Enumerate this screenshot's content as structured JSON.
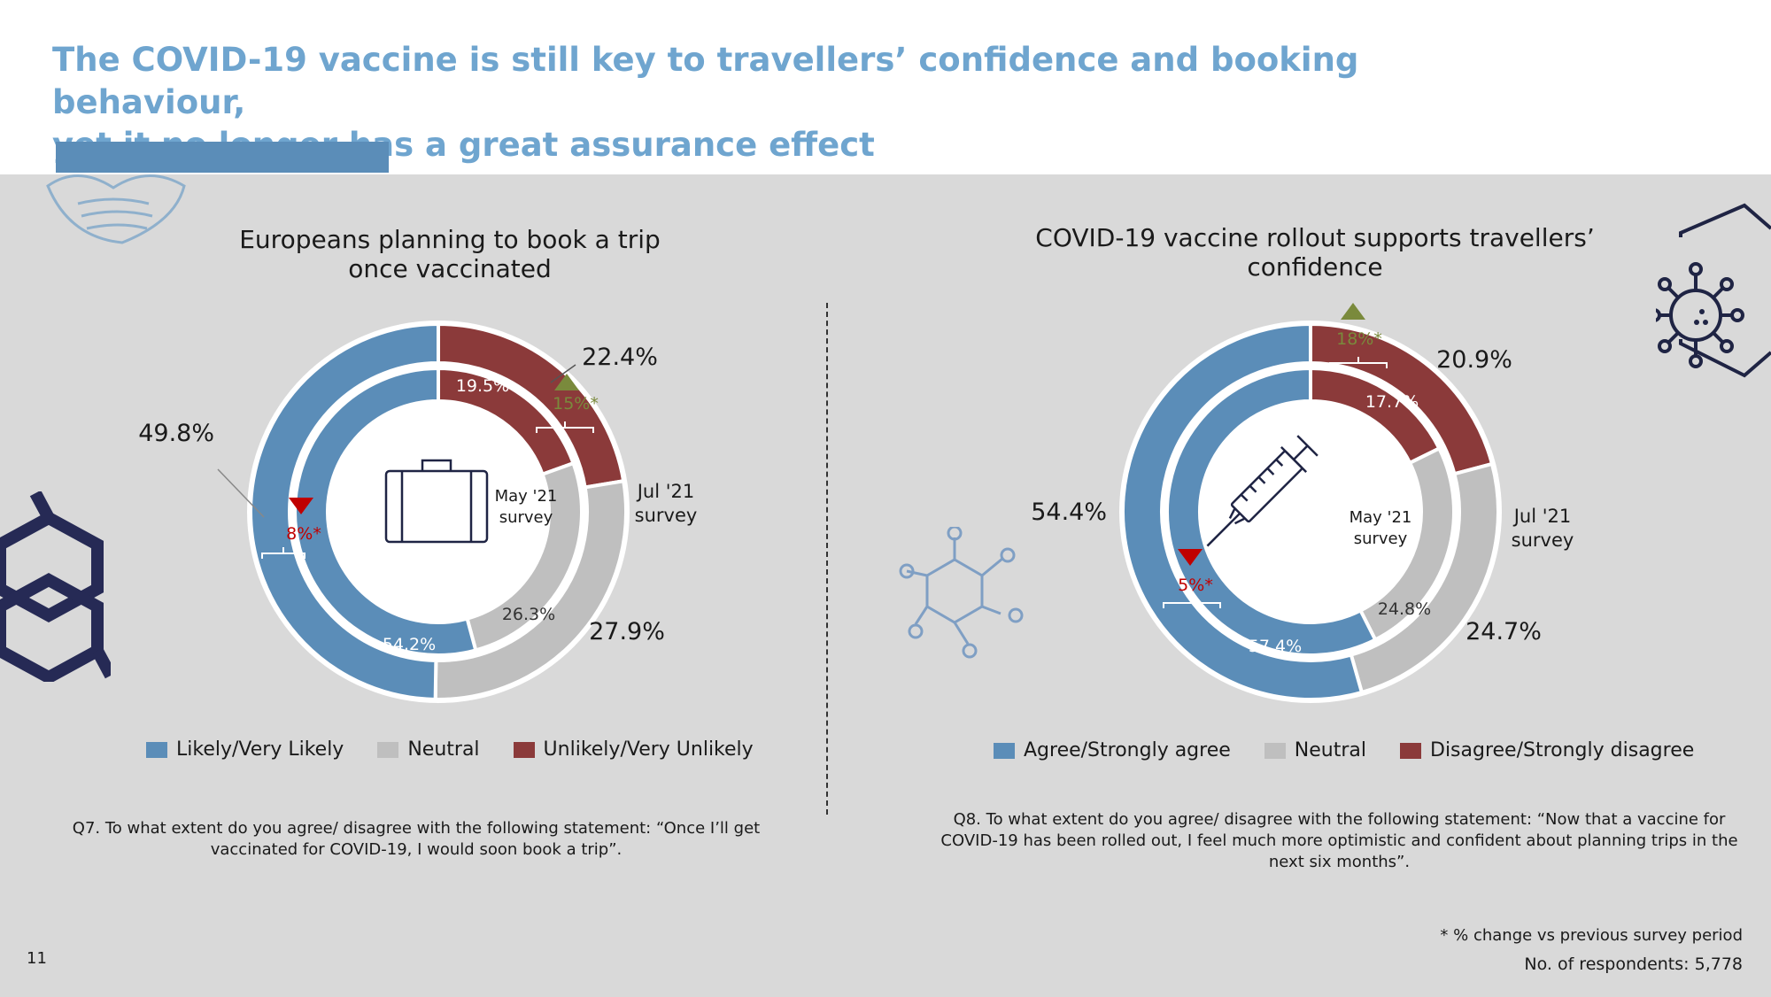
{
  "slide": {
    "title_line1": "The COVID-19 vaccine is still key to travellers’ confidence and booking behaviour,",
    "title_line2": "yet it no longer has a great assurance effect",
    "page_number": "11",
    "footnote": "* % change vs previous survey period",
    "respondents": "No. of respondents: 5,778"
  },
  "colors": {
    "blue": "#5b8db8",
    "grey": "#bfbfbf",
    "red": "#8b3a3a",
    "up": "#7a8a3c",
    "down": "#c00000",
    "title": "#6fa5cf",
    "navy": "#1f2444"
  },
  "chart_data": [
    {
      "type": "donut",
      "title_line1": "Europeans planning to book a trip",
      "title_line2": "once vaccinated",
      "legend": [
        "Likely/Very Likely",
        "Neutral",
        "Unlikely/Very Unlikely"
      ],
      "series": [
        {
          "name": "Jul '21 survey",
          "ring": "outer",
          "values": [
            49.8,
            27.9,
            22.4
          ],
          "labels": [
            "49.8%",
            "27.9%",
            "22.4%"
          ]
        },
        {
          "name": "May '21 survey",
          "ring": "inner",
          "values": [
            54.2,
            26.3,
            19.5
          ],
          "labels": [
            "54.2%",
            "26.3%",
            "19.5%"
          ]
        }
      ],
      "outer_label": [
        "Jul '21",
        "survey"
      ],
      "inner_label": [
        "May '21",
        "survey"
      ],
      "changes": [
        {
          "category": "Likely/Very Likely",
          "direction": "down",
          "label": "8%*"
        },
        {
          "category": "Unlikely/Very Unlikely",
          "direction": "up",
          "label": "15%*"
        }
      ],
      "center_icon": "suitcase-icon",
      "question": "Q7. To what extent do you agree/ disagree with the following statement: “Once I’ll get vaccinated for COVID-19, I would soon book a trip”."
    },
    {
      "type": "donut",
      "title_line1": "COVID-19 vaccine rollout supports travellers’",
      "title_line2": "confidence",
      "legend": [
        "Agree/Strongly agree",
        "Neutral",
        "Disagree/Strongly disagree"
      ],
      "series": [
        {
          "name": "Jul '21 survey",
          "ring": "outer",
          "values": [
            54.4,
            24.7,
            20.9
          ],
          "labels": [
            "54.4%",
            "24.7%",
            "20.9%"
          ]
        },
        {
          "name": "May '21 survey",
          "ring": "inner",
          "values": [
            57.4,
            24.8,
            17.7
          ],
          "labels": [
            "57.4%",
            "24.8%",
            "17.7%"
          ]
        }
      ],
      "outer_label": [
        "Jul '21",
        "survey"
      ],
      "inner_label": [
        "May '21",
        "survey"
      ],
      "changes": [
        {
          "category": "Agree/Strongly agree",
          "direction": "down",
          "label": "5%*"
        },
        {
          "category": "Disagree/Strongly disagree",
          "direction": "up",
          "label": "18%*"
        }
      ],
      "center_icon": "syringe-icon",
      "question": "Q8. To what extent do you agree/ disagree with the following statement: “Now that a vaccine for COVID-19 has been rolled out, I feel much more optimistic and confident about planning trips in the next six months”."
    }
  ],
  "decorations": [
    "face-mask-icon",
    "virus-icon",
    "hexagon-molecule-icon",
    "molecule-icon"
  ]
}
